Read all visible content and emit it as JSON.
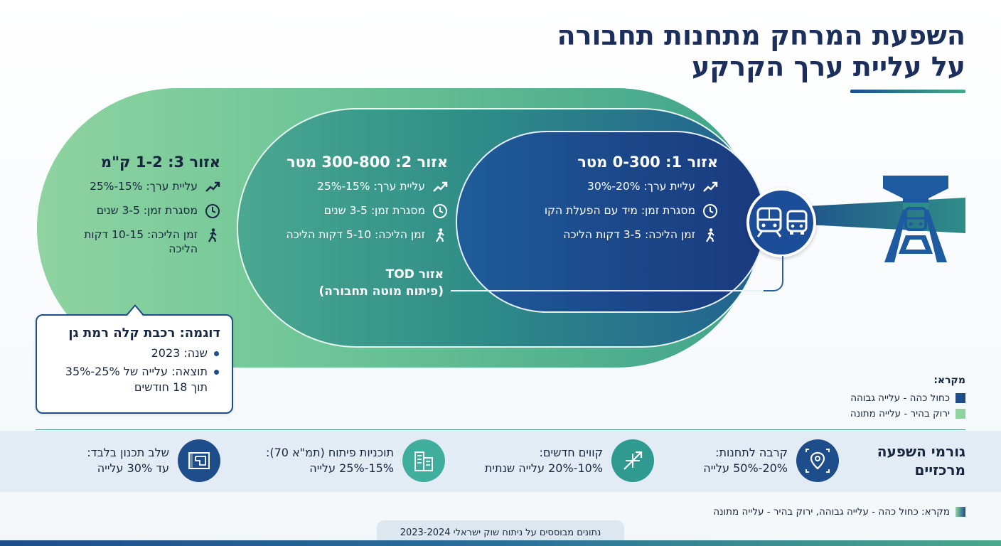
{
  "title": {
    "line1": "השפעת המרחק מתחנות תחבורה",
    "line2": "על עליית ערך הקרקע"
  },
  "zones": [
    {
      "heading": "אזור 1: 0-300 מטר",
      "value_rise": "עליית ערך: 20%-30%",
      "timeframe": "מסגרת זמן: מיד עם הפעלת הקו",
      "walk_time": "זמן הליכה: 3-5 דקות הליכה"
    },
    {
      "heading": "אזור 2: 300-800 מטר",
      "value_rise": "עליית ערך: 15%-25%",
      "timeframe": "מסגרת זמן: 3-5 שנים",
      "walk_time": "זמן הליכה: 5-10 דקות הליכה"
    },
    {
      "heading": "אזור 3: 1-2 ק\"מ",
      "value_rise": "עליית ערך: 15%-25%",
      "timeframe": "מסגרת זמן: 3-5 שנים",
      "walk_time": "זמן הליכה: 10-15 דקות הליכה"
    }
  ],
  "tod": {
    "line1": "אזור TOD",
    "line2": "(פיתוח מוטה תחבורה)"
  },
  "example": {
    "heading": "דוגמה: רכבת קלה רמת גן",
    "items": [
      "שנה: 2023",
      "תוצאה: עלייה של 25%-35% תוך 18 חודשים"
    ]
  },
  "legend_top": {
    "heading": "מקרא:",
    "dark": "כחול כהה - עלייה גבוהה",
    "light": "ירוק בהיר - עלייה מתונה"
  },
  "factors": {
    "title": "גורמי השפעה מרכזיים",
    "items": [
      {
        "label": "קרבה לתחנות:",
        "value": "20%-50% עלייה",
        "icon": "location-pin-icon"
      },
      {
        "label": "קווים חדשים:",
        "value": "10%-20% עלייה שנתית",
        "icon": "new-lines-icon"
      },
      {
        "label": "תוכניות פיתוח (תמ\"א 70):",
        "value": "15%-25% עלייה",
        "icon": "buildings-icon"
      },
      {
        "label": "שלב תכנון בלבד:",
        "value": "עד 30% עלייה",
        "icon": "blueprint-icon"
      }
    ]
  },
  "legend_bottom": "מקרא: כחול כהה - עלייה גבוהה, ירוק בהיר - עלייה מתונה",
  "source": "נתונים מבוססים על ניתוח שוק ישראלי 2023-2024",
  "colors": {
    "dark_blue": "#1b4789",
    "teal": "#2f8d88",
    "light_green": "#8fd3a0",
    "text": "#17263f"
  }
}
